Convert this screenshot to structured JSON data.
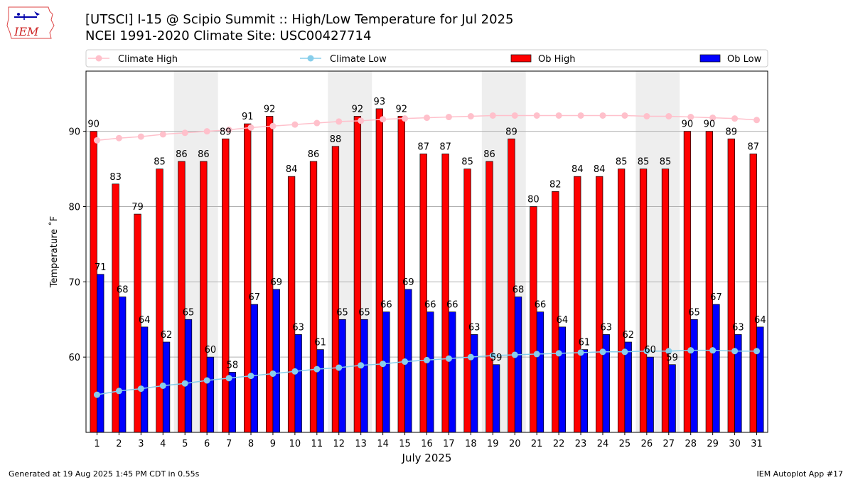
{
  "header": {
    "title": "[UTSCI] I-15 @ Scipio Summit  :: High/Low Temperature for Jul 2025",
    "subtitle": "NCEI 1991-2020 Climate Site: USC00427714",
    "logo_text": "IEM"
  },
  "footer": {
    "generated": "Generated at 19 Aug 2025 1:45 PM CDT in 0.55s",
    "app": "IEM Autoplot App #17"
  },
  "colors": {
    "ob_high": "#ff0000",
    "ob_low": "#0000ff",
    "climate_high": "#ffc0cb",
    "climate_low": "#87ceeb",
    "weekend_shade": "#eeeeee",
    "grid": "#b0b0b0"
  },
  "chart_data": {
    "type": "bar",
    "title": "[UTSCI] I-15 @ Scipio Summit  :: High/Low Temperature for Jul 2025",
    "xlabel": "July 2025",
    "ylabel": "Temperature ˚F",
    "ylim": [
      50,
      98
    ],
    "yticks": [
      60,
      70,
      80,
      90
    ],
    "grid": true,
    "legend_position": "top",
    "categories": [
      "1",
      "2",
      "3",
      "4",
      "5",
      "6",
      "7",
      "8",
      "9",
      "10",
      "11",
      "12",
      "13",
      "14",
      "15",
      "16",
      "17",
      "18",
      "19",
      "20",
      "21",
      "22",
      "23",
      "24",
      "25",
      "26",
      "27",
      "28",
      "29",
      "30",
      "31"
    ],
    "shaded_day_ranges": [
      [
        5,
        6
      ],
      [
        12,
        13
      ],
      [
        19,
        20
      ],
      [
        26,
        27
      ]
    ],
    "series": [
      {
        "name": "Ob High",
        "kind": "bar",
        "values": [
          90,
          83,
          79,
          85,
          86,
          86,
          89,
          91,
          92,
          84,
          86,
          88,
          92,
          93,
          92,
          87,
          87,
          85,
          86,
          89,
          80,
          82,
          84,
          84,
          85,
          85,
          85,
          90,
          90,
          89,
          87
        ]
      },
      {
        "name": "Ob Low",
        "kind": "bar",
        "values": [
          71,
          68,
          64,
          62,
          65,
          60,
          58,
          67,
          69,
          63,
          61,
          65,
          65,
          66,
          69,
          66,
          66,
          63,
          59,
          68,
          66,
          64,
          61,
          63,
          62,
          60,
          59,
          65,
          67,
          63,
          64
        ]
      },
      {
        "name": "Climate High",
        "kind": "line",
        "values": [
          88.8,
          89.1,
          89.3,
          89.6,
          89.8,
          90.0,
          90.2,
          90.5,
          90.7,
          90.9,
          91.1,
          91.3,
          91.4,
          91.6,
          91.7,
          91.8,
          91.9,
          92.0,
          92.1,
          92.1,
          92.1,
          92.1,
          92.1,
          92.1,
          92.1,
          92.0,
          92.0,
          91.9,
          91.8,
          91.7,
          91.5
        ]
      },
      {
        "name": "Climate Low",
        "kind": "line",
        "values": [
          55.0,
          55.5,
          55.8,
          56.2,
          56.5,
          56.9,
          57.2,
          57.5,
          57.8,
          58.1,
          58.4,
          58.6,
          58.9,
          59.1,
          59.4,
          59.6,
          59.8,
          60.0,
          60.2,
          60.3,
          60.4,
          60.5,
          60.6,
          60.7,
          60.7,
          60.8,
          60.8,
          60.9,
          60.9,
          60.8,
          60.8
        ]
      }
    ]
  }
}
